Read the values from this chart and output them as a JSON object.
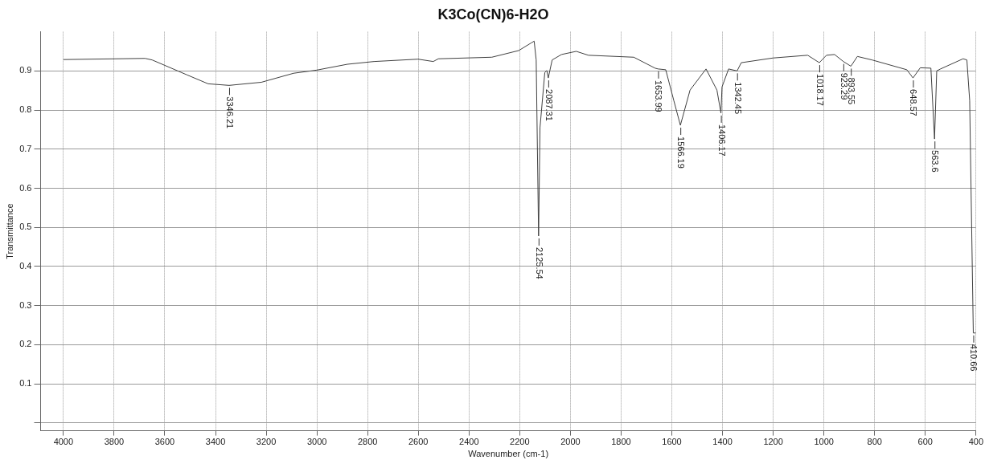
{
  "chart_data": {
    "type": "line",
    "title": "K3Co(CN)6-H2O",
    "xlabel": "Wavenumber (cm-1)",
    "ylabel": "Transmittance",
    "xlim": [
      4090,
      400
    ],
    "ylim": [
      -0.02,
      1.0
    ],
    "xticks": [
      4000,
      3800,
      3600,
      3400,
      3200,
      3000,
      2800,
      2600,
      2400,
      2200,
      2000,
      1800,
      1600,
      1400,
      1200,
      1000,
      800,
      600,
      400
    ],
    "yticks": [
      {
        "value": 0,
        "label": null
      },
      0.1,
      0.2,
      0.3,
      0.4,
      0.5,
      0.6,
      0.7,
      0.8,
      0.9
    ],
    "grid": true,
    "legend": false,
    "marker": "none",
    "line_style": "solid",
    "series": [
      {
        "color": "#404040",
        "x": [
          4000,
          3678,
          3650,
          3513,
          3429,
          3346.21,
          3219,
          3092,
          3001,
          2880,
          2775,
          2601,
          2541,
          2521,
          2310,
          2204,
          2156,
          2143,
          2135,
          2125.54,
          2120,
          2101,
          2093,
          2087.31,
          2072,
          2035,
          1977,
          1929,
          1750,
          1666,
          1653.99,
          1624,
          1592,
          1566.19,
          1528,
          1465,
          1422,
          1406.17,
          1402,
          1376,
          1342.45,
          1326,
          1201,
          1064,
          1018.17,
          990,
          958,
          923.29,
          893.55,
          868,
          810,
          673,
          648.57,
          620,
          578,
          563.6,
          555,
          540,
          451,
          436,
          425,
          410.66,
          401
        ],
        "values": [
          0.929,
          0.932,
          0.928,
          0.89,
          0.867,
          0.863,
          0.871,
          0.894,
          0.902,
          0.917,
          0.924,
          0.93,
          0.924,
          0.931,
          0.935,
          0.952,
          0.971,
          0.976,
          0.928,
          0.478,
          0.755,
          0.896,
          0.901,
          0.882,
          0.928,
          0.942,
          0.95,
          0.94,
          0.935,
          0.907,
          0.905,
          0.903,
          0.824,
          0.761,
          0.851,
          0.905,
          0.851,
          0.792,
          0.859,
          0.905,
          0.9,
          0.921,
          0.933,
          0.94,
          0.921,
          0.94,
          0.942,
          0.924,
          0.912,
          0.937,
          0.928,
          0.903,
          0.882,
          0.908,
          0.907,
          0.726,
          0.9,
          0.905,
          0.931,
          0.928,
          0.824,
          0.23,
          0.23
        ]
      }
    ],
    "annotations": [
      {
        "text": "3346.21",
        "x": 3346.21,
        "y": 0.863
      },
      {
        "text": "2125.54",
        "x": 2125.54,
        "y": 0.478
      },
      {
        "text": "2087.31",
        "x": 2087.31,
        "y": 0.882
      },
      {
        "text": "1653.99",
        "x": 1653.99,
        "y": 0.905
      },
      {
        "text": "1566.19",
        "x": 1566.19,
        "y": 0.761
      },
      {
        "text": "1406.17",
        "x": 1406.17,
        "y": 0.792
      },
      {
        "text": "1342.45",
        "x": 1342.45,
        "y": 0.9
      },
      {
        "text": "1018.17",
        "x": 1018.17,
        "y": 0.921
      },
      {
        "text": "923.29",
        "x": 923.29,
        "y": 0.924
      },
      {
        "text": "893.55",
        "x": 893.55,
        "y": 0.912
      },
      {
        "text": "648.57",
        "x": 648.57,
        "y": 0.882
      },
      {
        "text": "563.6",
        "x": 563.6,
        "y": 0.726
      },
      {
        "text": "410.66",
        "x": 410.66,
        "y": 0.23
      }
    ]
  }
}
